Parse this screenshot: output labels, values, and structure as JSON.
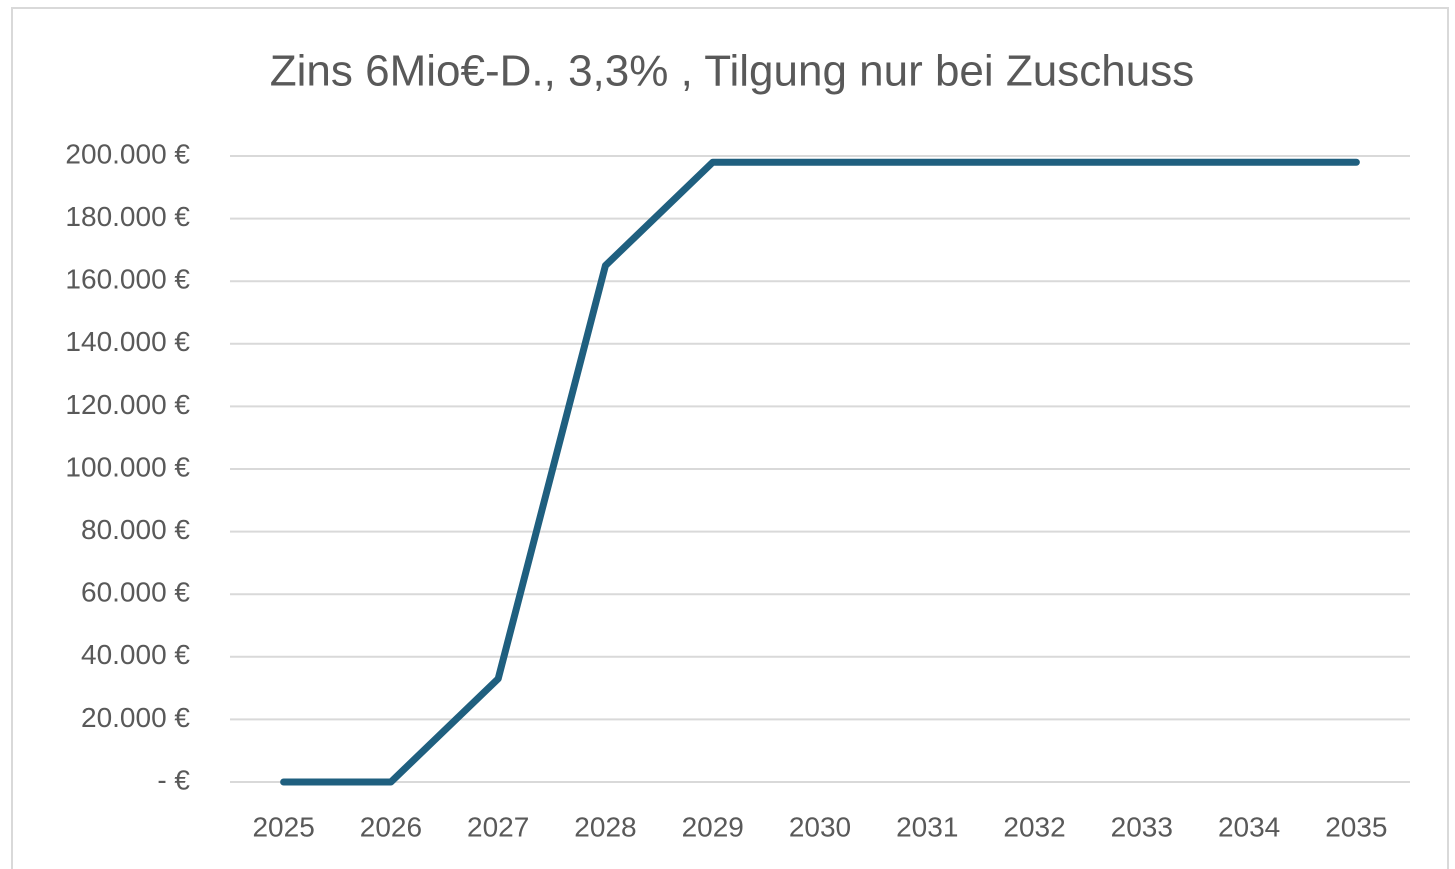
{
  "chart_data": {
    "type": "line",
    "title": "Zins 6Mio€-D., 3,3% , Tilgung nur bei Zuschuss",
    "categories": [
      "2025",
      "2026",
      "2027",
      "2028",
      "2029",
      "2030",
      "2031",
      "2032",
      "2033",
      "2034",
      "2035"
    ],
    "series": [
      {
        "name": "Zins",
        "color": "#1f5f7f",
        "values": [
          0,
          0,
          33000,
          165000,
          198000,
          198000,
          198000,
          198000,
          198000,
          198000,
          198000
        ]
      }
    ],
    "ylim": [
      0,
      200000
    ],
    "yticks": [
      {
        "value": 0,
        "label": "-   €"
      },
      {
        "value": 20000,
        "label": "20.000 €"
      },
      {
        "value": 40000,
        "label": "40.000 €"
      },
      {
        "value": 60000,
        "label": "60.000 €"
      },
      {
        "value": 80000,
        "label": "80.000 €"
      },
      {
        "value": 100000,
        "label": "100.000 €"
      },
      {
        "value": 120000,
        "label": "120.000 €"
      },
      {
        "value": 140000,
        "label": "140.000 €"
      },
      {
        "value": 160000,
        "label": "160.000 €"
      },
      {
        "value": 180000,
        "label": "180.000 €"
      },
      {
        "value": 200000,
        "label": "200.000 €"
      }
    ],
    "grid": true
  }
}
